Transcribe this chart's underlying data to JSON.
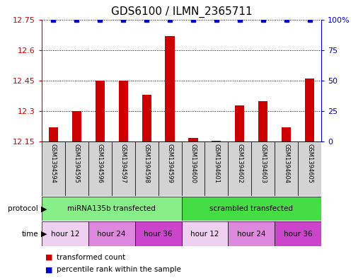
{
  "title": "GDS6100 / ILMN_2365711",
  "samples": [
    "GSM1394594",
    "GSM1394595",
    "GSM1394596",
    "GSM1394597",
    "GSM1394598",
    "GSM1394599",
    "GSM1394600",
    "GSM1394601",
    "GSM1394602",
    "GSM1394603",
    "GSM1394604",
    "GSM1394605"
  ],
  "bar_values": [
    12.22,
    12.3,
    12.45,
    12.45,
    12.38,
    12.67,
    12.17,
    12.155,
    12.33,
    12.35,
    12.22,
    12.46
  ],
  "percentile_values": [
    100,
    100,
    100,
    100,
    100,
    100,
    100,
    100,
    100,
    100,
    100,
    100
  ],
  "bar_color": "#cc0000",
  "percentile_color": "#0000cc",
  "ylim_left": [
    12.15,
    12.75
  ],
  "ylim_right": [
    0,
    100
  ],
  "yticks_left": [
    12.15,
    12.3,
    12.45,
    12.6,
    12.75
  ],
  "yticks_right": [
    0,
    25,
    50,
    75,
    100
  ],
  "ytick_labels_left": [
    "12.15",
    "12.3",
    "12.45",
    "12.6",
    "12.75"
  ],
  "ytick_labels_right": [
    "0",
    "25",
    "50",
    "75",
    "100%"
  ],
  "protocol_groups": [
    {
      "label": "miRNA135b transfected",
      "start": 0,
      "end": 6,
      "color": "#88ee88"
    },
    {
      "label": "scrambled transfected",
      "start": 6,
      "end": 12,
      "color": "#44dd44"
    }
  ],
  "time_groups": [
    {
      "label": "hour 12",
      "start": 0,
      "end": 2,
      "color": "#f0d0f0"
    },
    {
      "label": "hour 24",
      "start": 2,
      "end": 4,
      "color": "#dd88dd"
    },
    {
      "label": "hour 36",
      "start": 4,
      "end": 6,
      "color": "#cc44cc"
    },
    {
      "label": "hour 12",
      "start": 6,
      "end": 8,
      "color": "#f0d0f0"
    },
    {
      "label": "hour 24",
      "start": 8,
      "end": 10,
      "color": "#dd88dd"
    },
    {
      "label": "hour 36",
      "start": 10,
      "end": 12,
      "color": "#cc44cc"
    }
  ],
  "sample_box_color": "#d3d3d3",
  "bar_width": 0.4,
  "title_fontsize": 11,
  "tick_fontsize": 8,
  "sample_fontsize": 6,
  "annot_fontsize": 7.5,
  "legend_fontsize": 7.5
}
